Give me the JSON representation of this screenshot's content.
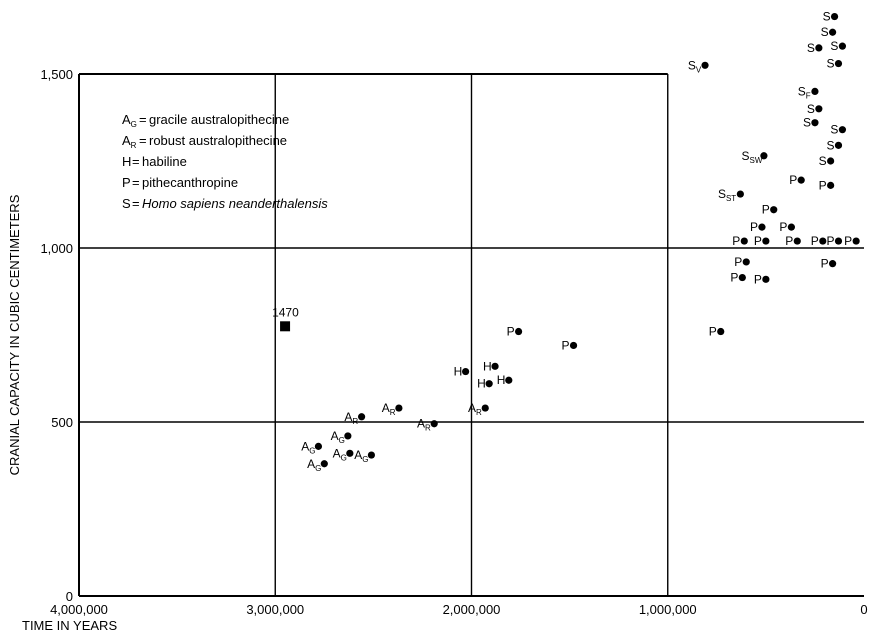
{
  "chart_data": {
    "type": "scatter",
    "title": "",
    "xlabel": "TIME IN YEARS",
    "ylabel": "CRANIAL CAPACITY IN CUBIC CENTIMETERS",
    "xlim": [
      4000000,
      0
    ],
    "ylim": [
      0,
      1500
    ],
    "x_reversed": true,
    "grid": true,
    "x_ticks": [
      4000000,
      3000000,
      2000000,
      1000000,
      0
    ],
    "x_tick_labels": [
      "4,000,000",
      "3,000,000",
      "2,000,000",
      "1,000,000",
      "0"
    ],
    "y_ticks": [
      0,
      500,
      1000,
      1500
    ],
    "y_tick_labels": [
      "0",
      "500",
      "1,000",
      "1,500"
    ],
    "legend": {
      "placement": "top-left",
      "entries": [
        {
          "symbol": "A",
          "sub": "G",
          "text": "gracile australopithecine"
        },
        {
          "symbol": "A",
          "sub": "R",
          "text": "robust australopithecine"
        },
        {
          "symbol": "H",
          "sub": "",
          "text": "habiline"
        },
        {
          "symbol": "P",
          "sub": "",
          "text": "pithecanthropine"
        },
        {
          "symbol": "S",
          "sub": "",
          "text": "Homo sapiens neanderthalensis"
        }
      ]
    },
    "square_marker": {
      "label": "1470",
      "x": 2950000,
      "y": 775
    },
    "points": [
      {
        "x": 2780000,
        "y": 430,
        "label": "A",
        "sub": "G"
      },
      {
        "x": 2750000,
        "y": 380,
        "label": "A",
        "sub": "G"
      },
      {
        "x": 2630000,
        "y": 460,
        "label": "A",
        "sub": "G"
      },
      {
        "x": 2620000,
        "y": 410,
        "label": "A",
        "sub": "G"
      },
      {
        "x": 2510000,
        "y": 405,
        "label": "A",
        "sub": "G"
      },
      {
        "x": 2560000,
        "y": 515,
        "label": "A",
        "sub": "R"
      },
      {
        "x": 2370000,
        "y": 540,
        "label": "A",
        "sub": "R"
      },
      {
        "x": 2190000,
        "y": 495,
        "label": "A",
        "sub": "R"
      },
      {
        "x": 1930000,
        "y": 540,
        "label": "A",
        "sub": "R"
      },
      {
        "x": 2030000,
        "y": 645,
        "label": "H",
        "sub": ""
      },
      {
        "x": 1880000,
        "y": 660,
        "label": "H",
        "sub": ""
      },
      {
        "x": 1910000,
        "y": 610,
        "label": "H",
        "sub": ""
      },
      {
        "x": 1810000,
        "y": 620,
        "label": "H",
        "sub": ""
      },
      {
        "x": 1760000,
        "y": 760,
        "label": "P",
        "sub": ""
      },
      {
        "x": 1480000,
        "y": 720,
        "label": "P",
        "sub": ""
      },
      {
        "x": 730000,
        "y": 760,
        "label": "P",
        "sub": ""
      },
      {
        "x": 320000,
        "y": 1195,
        "label": "P",
        "sub": ""
      },
      {
        "x": 170000,
        "y": 1180,
        "label": "P",
        "sub": ""
      },
      {
        "x": 460000,
        "y": 1110,
        "label": "P",
        "sub": ""
      },
      {
        "x": 520000,
        "y": 1060,
        "label": "P",
        "sub": ""
      },
      {
        "x": 370000,
        "y": 1060,
        "label": "P",
        "sub": ""
      },
      {
        "x": 610000,
        "y": 1020,
        "label": "P",
        "sub": ""
      },
      {
        "x": 500000,
        "y": 1020,
        "label": "P",
        "sub": ""
      },
      {
        "x": 340000,
        "y": 1020,
        "label": "P",
        "sub": ""
      },
      {
        "x": 210000,
        "y": 1020,
        "label": "P",
        "sub": ""
      },
      {
        "x": 130000,
        "y": 1020,
        "label": "P",
        "sub": ""
      },
      {
        "x": 40000,
        "y": 1020,
        "label": "P",
        "sub": ""
      },
      {
        "x": 600000,
        "y": 960,
        "label": "P",
        "sub": ""
      },
      {
        "x": 160000,
        "y": 955,
        "label": "P",
        "sub": ""
      },
      {
        "x": 620000,
        "y": 915,
        "label": "P",
        "sub": ""
      },
      {
        "x": 500000,
        "y": 910,
        "label": "P",
        "sub": ""
      },
      {
        "x": 810000,
        "y": 1525,
        "label": "S",
        "sub": "V"
      },
      {
        "x": 250000,
        "y": 1450,
        "label": "S",
        "sub": "F"
      },
      {
        "x": 510000,
        "y": 1265,
        "label": "S",
        "sub": "SW"
      },
      {
        "x": 630000,
        "y": 1155,
        "label": "S",
        "sub": "ST"
      },
      {
        "x": 150000,
        "y": 1665,
        "label": "S",
        "sub": ""
      },
      {
        "x": 160000,
        "y": 1620,
        "label": "S",
        "sub": ""
      },
      {
        "x": 230000,
        "y": 1575,
        "label": "S",
        "sub": ""
      },
      {
        "x": 110000,
        "y": 1580,
        "label": "S",
        "sub": ""
      },
      {
        "x": 130000,
        "y": 1530,
        "label": "S",
        "sub": ""
      },
      {
        "x": 230000,
        "y": 1400,
        "label": "S",
        "sub": ""
      },
      {
        "x": 250000,
        "y": 1360,
        "label": "S",
        "sub": ""
      },
      {
        "x": 110000,
        "y": 1340,
        "label": "S",
        "sub": ""
      },
      {
        "x": 130000,
        "y": 1295,
        "label": "S",
        "sub": ""
      },
      {
        "x": 170000,
        "y": 1250,
        "label": "S",
        "sub": ""
      }
    ]
  }
}
